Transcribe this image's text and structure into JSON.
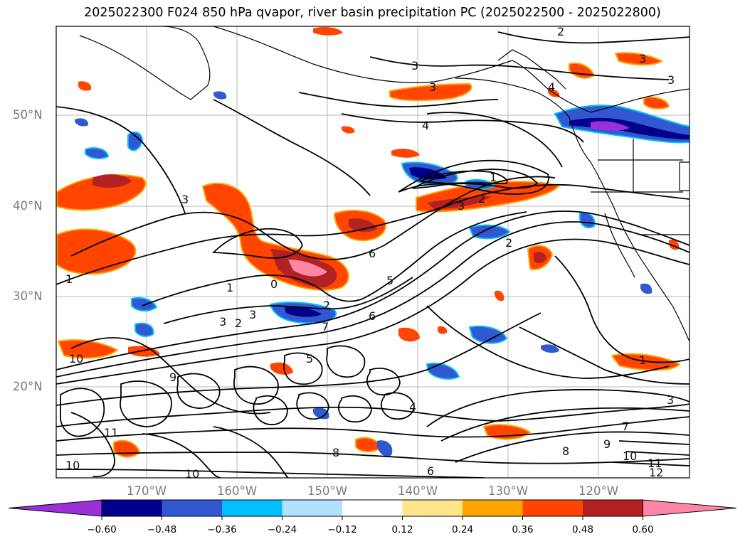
{
  "title": "2025022300 F024 850 hPa qvapor, river basin precipitation PC (2025022500 - 2025022800)",
  "lat_labels": [
    "50°N",
    "40°N",
    "30°N",
    "20°N"
  ],
  "lon_labels": [
    "170°W",
    "160°W",
    "150°W",
    "140°W",
    "130°W",
    "120°W"
  ],
  "colorbar": {
    "ticks": [
      "−0.60",
      "−0.48",
      "−0.36",
      "−0.24",
      "−0.12",
      "0.12",
      "0.24",
      "0.36",
      "0.48",
      "0.60"
    ],
    "colors": [
      "#9b30d9",
      "#00008b",
      "#3158d0",
      "#00bfff",
      "#b0e2ff",
      "#ffffff",
      "#ffe68a",
      "#ffa500",
      "#ff4500",
      "#b22222",
      "#ff85a7"
    ]
  },
  "contour_labels": [
    "2",
    "3",
    "3",
    "3",
    "3",
    "4",
    "4",
    "1",
    "2",
    "3",
    "3",
    "1",
    "2",
    "0",
    "6",
    "2",
    "1",
    "3",
    "2",
    "3",
    "5",
    "6",
    "7",
    "10",
    "9",
    "11",
    "10",
    "8",
    "9",
    "12",
    "10",
    "11",
    "4",
    "3",
    "6",
    "7",
    "8",
    "10",
    "5",
    "1"
  ]
}
